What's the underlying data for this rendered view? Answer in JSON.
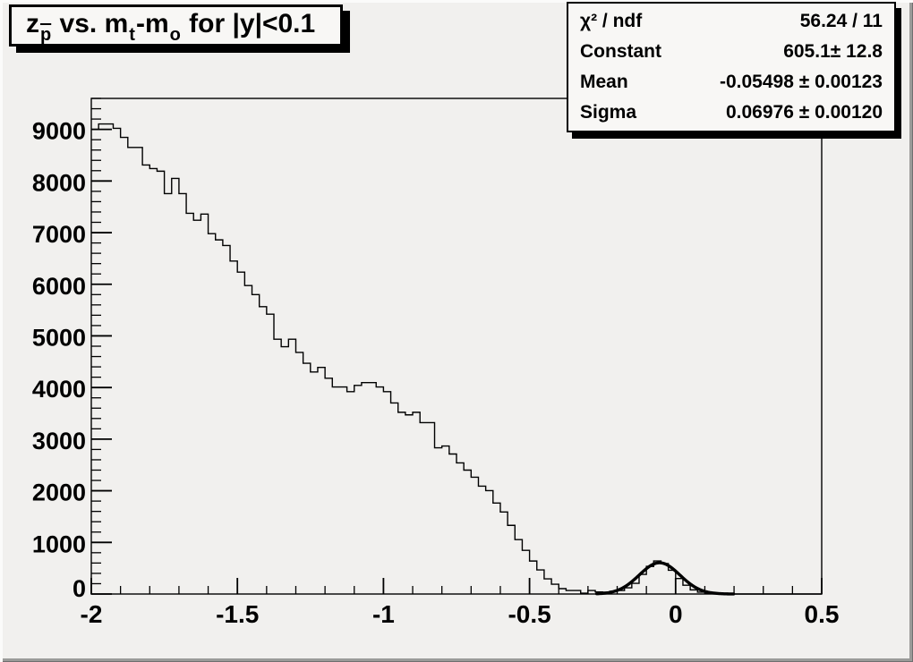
{
  "title_box": {
    "text": "z_p vs. m_t-m_o for |y|<0.1",
    "parts": [
      {
        "t": "z"
      },
      {
        "t": "p",
        "sub": true,
        "bar": true
      },
      {
        "t": " vs. m"
      },
      {
        "t": "t",
        "sub": true
      },
      {
        "t": "-m"
      },
      {
        "t": "o",
        "sub": true
      },
      {
        "t": " for |y|<0.1"
      }
    ]
  },
  "stats_box": {
    "rows": [
      {
        "label": "χ² / ndf",
        "value": "56.24 / 11"
      },
      {
        "label": "Constant",
        "value": "605.1± 12.8"
      },
      {
        "label": "Mean",
        "value": "-0.05498 ± 0.00123"
      },
      {
        "label": "Sigma",
        "value": "0.06976 ± 0.00120"
      }
    ]
  },
  "colors": {
    "canvas_bg": "#f1f0ee",
    "pave_bg": "#f8f7f5",
    "line": "#000000",
    "shadow": "#000000"
  },
  "chart_data": {
    "type": "bar",
    "subtype": "root-step-histogram",
    "title": "z_p vs. m_t-m_o for |y|<0.1",
    "xlabel": "",
    "ylabel": "",
    "xlim": [
      -2,
      0.5
    ],
    "ylim": [
      0,
      9600
    ],
    "grid": false,
    "legend": false,
    "x_major_ticks": [
      -2,
      -1.5,
      -1,
      -0.5,
      0,
      0.5
    ],
    "x_tick_labels": [
      "-2",
      "-1.5",
      "-1",
      "-0.5",
      "0",
      "0.5"
    ],
    "x_minor_step": 0.1,
    "y_major_ticks": [
      0,
      1000,
      2000,
      3000,
      4000,
      5000,
      6000,
      7000,
      8000,
      9000
    ],
    "y_minor_step": 200,
    "bin_start": -2,
    "bin_width": 0.025,
    "bin_values": [
      9000,
      9105,
      9105,
      9020,
      8845,
      8650,
      8650,
      8310,
      8240,
      8190,
      7755,
      8050,
      7755,
      7375,
      7240,
      7360,
      6980,
      6860,
      6750,
      6450,
      6235,
      5975,
      5800,
      5565,
      5420,
      4935,
      4790,
      4935,
      4680,
      4470,
      4300,
      4390,
      4180,
      4010,
      4010,
      3920,
      4040,
      4095,
      4095,
      4010,
      3920,
      3700,
      3520,
      3470,
      3520,
      3320,
      3320,
      2832,
      2867,
      2712,
      2539,
      2400,
      2263,
      2090,
      2003,
      1762,
      1589,
      1330,
      1053,
      846,
      639,
      466,
      294,
      190,
      104,
      69,
      69,
      17,
      69,
      40,
      35,
      52,
      69,
      121,
      207,
      380,
      535,
      640,
      590,
      460,
      300,
      170,
      80,
      35,
      15,
      6,
      3,
      0,
      0,
      0,
      0,
      0,
      0,
      0,
      0,
      0,
      0,
      0,
      0,
      0
    ],
    "fit": {
      "function": "gaussian",
      "constant": 605.1,
      "mean": -0.05498,
      "sigma": 0.06976,
      "draw_range": [
        -0.27,
        0.2
      ]
    }
  }
}
